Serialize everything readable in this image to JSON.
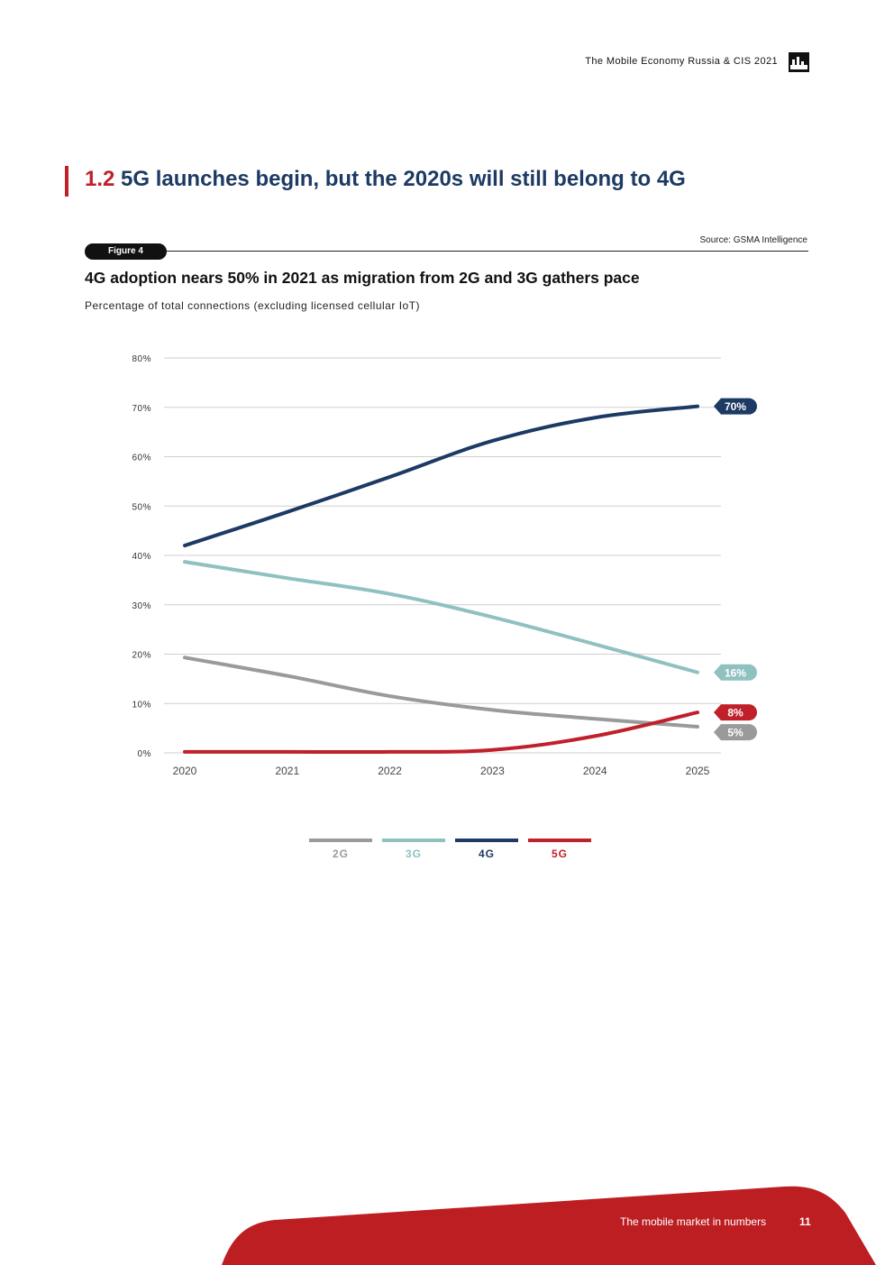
{
  "header": {
    "title": "The Mobile Economy Russia & CIS 2021",
    "logo_icon": "gsma-logo-icon"
  },
  "section": {
    "number": "1.2",
    "heading": "5G launches begin, but the 2020s will still belong to 4G"
  },
  "figure": {
    "badge": "Figure 4",
    "source": "Source: GSMA Intelligence",
    "title": "4G adoption nears 50% in 2021 as migration from 2G and 3G gathers pace",
    "subtitle": "Percentage of total connections (excluding licensed cellular IoT)"
  },
  "chart_data": {
    "type": "line",
    "title": "4G adoption nears 50% in 2021 as migration from 2G and 3G gathers pace",
    "subtitle": "Percentage of total connections (excluding licensed cellular IoT)",
    "xlabel": "",
    "ylabel": "",
    "x": [
      "2020",
      "2021",
      "2022",
      "2023",
      "2024",
      "2025"
    ],
    "ylim": [
      0,
      80
    ],
    "yticks": [
      "0%",
      "10%",
      "20%",
      "30%",
      "40%",
      "50%",
      "60%",
      "70%",
      "80%"
    ],
    "grid": true,
    "legend_position": "bottom",
    "series": [
      {
        "name": "2G",
        "color": "#9a9a9a",
        "values": [
          19.3,
          15.6,
          11.5,
          8.7,
          6.9,
          5.3
        ],
        "end_label": "5%"
      },
      {
        "name": "3G",
        "color": "#8fc1c1",
        "values": [
          38.7,
          35.4,
          32.2,
          27.5,
          22.0,
          16.3
        ],
        "end_label": "16%"
      },
      {
        "name": "4G",
        "color": "#1c3a63",
        "values": [
          42.0,
          48.8,
          55.9,
          63.2,
          67.9,
          70.2
        ],
        "end_label": "70%"
      },
      {
        "name": "5G",
        "color": "#c0202a",
        "values": [
          0.2,
          0.2,
          0.2,
          0.6,
          3.4,
          8.2
        ],
        "end_label": "8%"
      }
    ]
  },
  "footer": {
    "section_label": "The mobile market in numbers",
    "page_number": "11",
    "accent_color": "#bd1e22"
  }
}
